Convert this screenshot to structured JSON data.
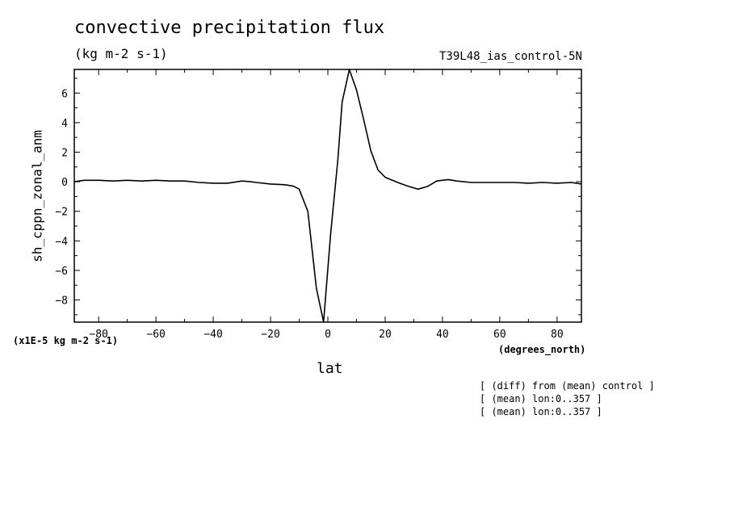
{
  "chart_data": {
    "type": "line",
    "title": "convective precipitation flux",
    "units": "(kg m-2 s-1)",
    "run_label": "T39L48_ias_control-5N",
    "ylabel": "sh_cppn_zonal_anm",
    "y_scale_note": "(x1E-5 kg m-2 s-1)",
    "xlabel": "lat",
    "x_unit_note": "(degrees_north)",
    "notes": [
      "[ (diff) from (mean) control ]",
      "[ (mean) lon:0..357 ]",
      "[ (mean) lon:0..357 ]"
    ],
    "xlim": [
      -88.5,
      88.5
    ],
    "ylim": [
      -9.5,
      7.6
    ],
    "x_ticks": [
      -80,
      -60,
      -40,
      -20,
      0,
      20,
      40,
      60,
      80
    ],
    "y_ticks": [
      -8,
      -6,
      -4,
      -2,
      0,
      2,
      4,
      6
    ],
    "series": [
      {
        "x": [
          -88.5,
          -85,
          -80,
          -75,
          -70,
          -65,
          -60,
          -55,
          -50,
          -45,
          -40,
          -35,
          -30,
          -27,
          -25,
          -20,
          -15,
          -12,
          -10,
          -7,
          -4,
          -1.5,
          1,
          3.5,
          5,
          7.5,
          10,
          12.5,
          15,
          17.5,
          20,
          25,
          28,
          31.5,
          35,
          38,
          42,
          45,
          50,
          55,
          60,
          65,
          70,
          75,
          80,
          85,
          88.5
        ],
        "y": [
          0.0,
          0.1,
          0.1,
          0.05,
          0.1,
          0.05,
          0.1,
          0.05,
          0.05,
          -0.05,
          -0.1,
          -0.1,
          0.05,
          0.0,
          -0.05,
          -0.15,
          -0.2,
          -0.3,
          -0.5,
          -2.0,
          -7.2,
          -9.5,
          -3.5,
          1.5,
          5.4,
          7.6,
          6.2,
          4.2,
          2.1,
          0.8,
          0.3,
          -0.1,
          -0.3,
          -0.5,
          -0.3,
          0.05,
          0.15,
          0.05,
          -0.05,
          -0.05,
          -0.05,
          -0.05,
          -0.1,
          -0.05,
          -0.1,
          -0.05,
          -0.15
        ]
      }
    ]
  }
}
